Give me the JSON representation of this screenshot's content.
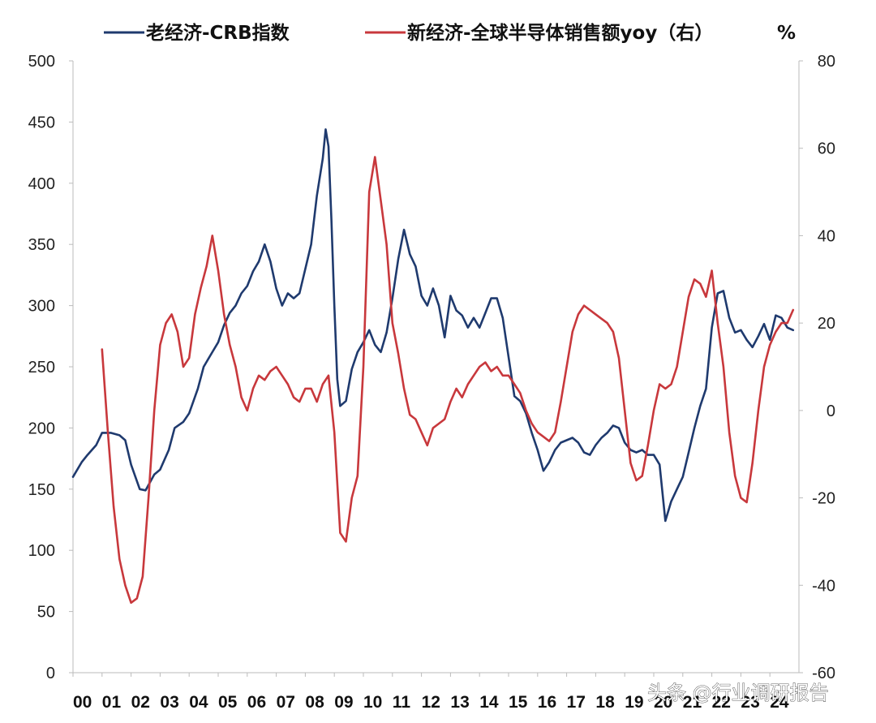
{
  "chart_data": {
    "type": "line",
    "title": "",
    "legend_position": "top",
    "x_tick_labels": [
      "00",
      "01",
      "02",
      "03",
      "04",
      "05",
      "06",
      "07",
      "08",
      "09",
      "10",
      "11",
      "12",
      "13",
      "14",
      "15",
      "16",
      "17",
      "18",
      "19",
      "20",
      "21",
      "22",
      "23",
      "24"
    ],
    "left_axis": {
      "ylim": [
        0,
        500
      ],
      "ticks": [
        "0",
        "50",
        "100",
        "150",
        "200",
        "250",
        "300",
        "350",
        "400",
        "450",
        "500"
      ]
    },
    "right_axis": {
      "ylim": [
        -60,
        80
      ],
      "ticks": [
        "-60",
        "-40",
        "-20",
        "0",
        "20",
        "40",
        "60",
        "80"
      ],
      "unit_label": "%"
    },
    "grid": false,
    "series": [
      {
        "name": "老经济-CRB指数",
        "axis": "left",
        "color": "#1f3a6e",
        "points": [
          [
            2000.0,
            160
          ],
          [
            2000.3,
            172
          ],
          [
            2000.5,
            178
          ],
          [
            2000.8,
            186
          ],
          [
            2001.0,
            196
          ],
          [
            2001.3,
            196
          ],
          [
            2001.6,
            194
          ],
          [
            2001.8,
            190
          ],
          [
            2002.0,
            170
          ],
          [
            2002.3,
            150
          ],
          [
            2002.5,
            149
          ],
          [
            2002.8,
            162
          ],
          [
            2003.0,
            166
          ],
          [
            2003.3,
            182
          ],
          [
            2003.5,
            200
          ],
          [
            2003.8,
            205
          ],
          [
            2004.0,
            212
          ],
          [
            2004.3,
            232
          ],
          [
            2004.5,
            250
          ],
          [
            2004.8,
            262
          ],
          [
            2005.0,
            270
          ],
          [
            2005.2,
            284
          ],
          [
            2005.4,
            294
          ],
          [
            2005.6,
            300
          ],
          [
            2005.8,
            310
          ],
          [
            2006.0,
            316
          ],
          [
            2006.2,
            328
          ],
          [
            2006.4,
            336
          ],
          [
            2006.6,
            350
          ],
          [
            2006.8,
            336
          ],
          [
            2007.0,
            314
          ],
          [
            2007.2,
            300
          ],
          [
            2007.4,
            310
          ],
          [
            2007.6,
            306
          ],
          [
            2007.8,
            310
          ],
          [
            2008.0,
            330
          ],
          [
            2008.2,
            350
          ],
          [
            2008.4,
            390
          ],
          [
            2008.6,
            420
          ],
          [
            2008.7,
            444
          ],
          [
            2008.8,
            430
          ],
          [
            2008.9,
            370
          ],
          [
            2009.0,
            300
          ],
          [
            2009.1,
            240
          ],
          [
            2009.2,
            218
          ],
          [
            2009.4,
            222
          ],
          [
            2009.6,
            248
          ],
          [
            2009.8,
            262
          ],
          [
            2010.0,
            270
          ],
          [
            2010.2,
            280
          ],
          [
            2010.4,
            268
          ],
          [
            2010.6,
            262
          ],
          [
            2010.8,
            278
          ],
          [
            2011.0,
            306
          ],
          [
            2011.2,
            338
          ],
          [
            2011.4,
            362
          ],
          [
            2011.6,
            342
          ],
          [
            2011.8,
            332
          ],
          [
            2012.0,
            308
          ],
          [
            2012.2,
            300
          ],
          [
            2012.4,
            314
          ],
          [
            2012.6,
            300
          ],
          [
            2012.8,
            274
          ],
          [
            2013.0,
            308
          ],
          [
            2013.2,
            296
          ],
          [
            2013.4,
            292
          ],
          [
            2013.6,
            282
          ],
          [
            2013.8,
            290
          ],
          [
            2014.0,
            282
          ],
          [
            2014.2,
            294
          ],
          [
            2014.4,
            306
          ],
          [
            2014.6,
            306
          ],
          [
            2014.8,
            290
          ],
          [
            2015.0,
            258
          ],
          [
            2015.2,
            226
          ],
          [
            2015.4,
            222
          ],
          [
            2015.6,
            212
          ],
          [
            2015.8,
            196
          ],
          [
            2016.0,
            182
          ],
          [
            2016.2,
            165
          ],
          [
            2016.4,
            172
          ],
          [
            2016.6,
            182
          ],
          [
            2016.8,
            188
          ],
          [
            2017.0,
            190
          ],
          [
            2017.2,
            192
          ],
          [
            2017.4,
            188
          ],
          [
            2017.6,
            180
          ],
          [
            2017.8,
            178
          ],
          [
            2018.0,
            186
          ],
          [
            2018.2,
            192
          ],
          [
            2018.4,
            196
          ],
          [
            2018.6,
            202
          ],
          [
            2018.8,
            200
          ],
          [
            2019.0,
            188
          ],
          [
            2019.2,
            182
          ],
          [
            2019.4,
            180
          ],
          [
            2019.6,
            182
          ],
          [
            2019.8,
            178
          ],
          [
            2020.0,
            178
          ],
          [
            2020.2,
            170
          ],
          [
            2020.4,
            124
          ],
          [
            2020.6,
            140
          ],
          [
            2020.8,
            150
          ],
          [
            2021.0,
            160
          ],
          [
            2021.2,
            180
          ],
          [
            2021.4,
            200
          ],
          [
            2021.6,
            218
          ],
          [
            2021.8,
            232
          ],
          [
            2022.0,
            282
          ],
          [
            2022.2,
            310
          ],
          [
            2022.4,
            312
          ],
          [
            2022.6,
            290
          ],
          [
            2022.8,
            278
          ],
          [
            2023.0,
            280
          ],
          [
            2023.2,
            272
          ],
          [
            2023.4,
            266
          ],
          [
            2023.6,
            275
          ],
          [
            2023.8,
            285
          ],
          [
            2024.0,
            272
          ],
          [
            2024.2,
            292
          ],
          [
            2024.4,
            290
          ],
          [
            2024.6,
            282
          ],
          [
            2024.8,
            280
          ]
        ]
      },
      {
        "name": "新经济-全球半导体销售额yoy（右）",
        "axis": "right",
        "color": "#c8383c",
        "points": [
          [
            2001.0,
            14
          ],
          [
            2001.2,
            -5
          ],
          [
            2001.4,
            -22
          ],
          [
            2001.6,
            -34
          ],
          [
            2001.8,
            -40
          ],
          [
            2002.0,
            -44
          ],
          [
            2002.2,
            -43
          ],
          [
            2002.4,
            -38
          ],
          [
            2002.6,
            -20
          ],
          [
            2002.8,
            0
          ],
          [
            2003.0,
            15
          ],
          [
            2003.2,
            20
          ],
          [
            2003.4,
            22
          ],
          [
            2003.6,
            18
          ],
          [
            2003.8,
            10
          ],
          [
            2004.0,
            12
          ],
          [
            2004.2,
            22
          ],
          [
            2004.4,
            28
          ],
          [
            2004.6,
            33
          ],
          [
            2004.8,
            40
          ],
          [
            2005.0,
            32
          ],
          [
            2005.2,
            22
          ],
          [
            2005.4,
            15
          ],
          [
            2005.6,
            10
          ],
          [
            2005.8,
            3
          ],
          [
            2006.0,
            0
          ],
          [
            2006.2,
            5
          ],
          [
            2006.4,
            8
          ],
          [
            2006.6,
            7
          ],
          [
            2006.8,
            9
          ],
          [
            2007.0,
            10
          ],
          [
            2007.2,
            8
          ],
          [
            2007.4,
            6
          ],
          [
            2007.6,
            3
          ],
          [
            2007.8,
            2
          ],
          [
            2008.0,
            5
          ],
          [
            2008.2,
            5
          ],
          [
            2008.4,
            2
          ],
          [
            2008.6,
            6
          ],
          [
            2008.8,
            8
          ],
          [
            2009.0,
            -5
          ],
          [
            2009.2,
            -28
          ],
          [
            2009.4,
            -30
          ],
          [
            2009.6,
            -20
          ],
          [
            2009.8,
            -15
          ],
          [
            2010.0,
            10
          ],
          [
            2010.2,
            50
          ],
          [
            2010.4,
            58
          ],
          [
            2010.6,
            48
          ],
          [
            2010.8,
            38
          ],
          [
            2011.0,
            20
          ],
          [
            2011.2,
            13
          ],
          [
            2011.4,
            5
          ],
          [
            2011.6,
            -1
          ],
          [
            2011.8,
            -2
          ],
          [
            2012.0,
            -5
          ],
          [
            2012.2,
            -8
          ],
          [
            2012.4,
            -4
          ],
          [
            2012.6,
            -3
          ],
          [
            2012.8,
            -2
          ],
          [
            2013.0,
            2
          ],
          [
            2013.2,
            5
          ],
          [
            2013.4,
            3
          ],
          [
            2013.6,
            6
          ],
          [
            2013.8,
            8
          ],
          [
            2014.0,
            10
          ],
          [
            2014.2,
            11
          ],
          [
            2014.4,
            9
          ],
          [
            2014.6,
            10
          ],
          [
            2014.8,
            8
          ],
          [
            2015.0,
            8
          ],
          [
            2015.2,
            6
          ],
          [
            2015.4,
            4
          ],
          [
            2015.6,
            0
          ],
          [
            2015.8,
            -3
          ],
          [
            2016.0,
            -5
          ],
          [
            2016.2,
            -6
          ],
          [
            2016.4,
            -7
          ],
          [
            2016.6,
            -5
          ],
          [
            2016.8,
            2
          ],
          [
            2017.0,
            10
          ],
          [
            2017.2,
            18
          ],
          [
            2017.4,
            22
          ],
          [
            2017.6,
            24
          ],
          [
            2017.8,
            23
          ],
          [
            2018.0,
            22
          ],
          [
            2018.2,
            21
          ],
          [
            2018.4,
            20
          ],
          [
            2018.6,
            18
          ],
          [
            2018.8,
            12
          ],
          [
            2019.0,
            0
          ],
          [
            2019.2,
            -12
          ],
          [
            2019.4,
            -16
          ],
          [
            2019.6,
            -15
          ],
          [
            2019.8,
            -8
          ],
          [
            2020.0,
            0
          ],
          [
            2020.2,
            6
          ],
          [
            2020.4,
            5
          ],
          [
            2020.6,
            6
          ],
          [
            2020.8,
            10
          ],
          [
            2021.0,
            18
          ],
          [
            2021.2,
            26
          ],
          [
            2021.4,
            30
          ],
          [
            2021.6,
            29
          ],
          [
            2021.8,
            26
          ],
          [
            2022.0,
            32
          ],
          [
            2022.2,
            20
          ],
          [
            2022.4,
            10
          ],
          [
            2022.6,
            -5
          ],
          [
            2022.8,
            -15
          ],
          [
            2023.0,
            -20
          ],
          [
            2023.2,
            -21
          ],
          [
            2023.4,
            -12
          ],
          [
            2023.6,
            0
          ],
          [
            2023.8,
            10
          ],
          [
            2024.0,
            15
          ],
          [
            2024.2,
            18
          ],
          [
            2024.4,
            20
          ],
          [
            2024.6,
            20
          ],
          [
            2024.8,
            23
          ]
        ]
      }
    ]
  },
  "legend": {
    "series1_label": "老经济-CRB指数",
    "series2_label": "新经济-全球半导体销售额yoy（右）",
    "unit": "%"
  },
  "watermark": "头条 @行业调研报告"
}
